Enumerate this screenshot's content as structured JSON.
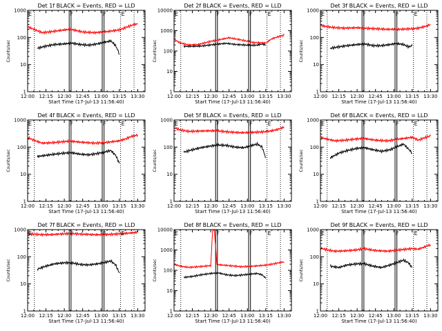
{
  "common": {
    "xlabel": "Start Time (17-Jul-13 11:56:40)",
    "ylabel": "Counts/sec",
    "x_ticks": [
      "12:00",
      "12:15",
      "12:30",
      "12:45",
      "13:00",
      "13:15",
      "13:30"
    ],
    "x_tick_minutes": [
      0,
      15,
      30,
      45,
      60,
      75,
      90
    ],
    "x_range_minutes": [
      0,
      96
    ],
    "y_scale": "log",
    "y_ticks": [
      1,
      10,
      100,
      1000
    ],
    "y_tick_labels": [
      "1",
      "10",
      "100",
      "1000"
    ],
    "colors": {
      "events": "#000000",
      "lld": "#ff0000"
    },
    "vlines": [
      {
        "minute": 5.5,
        "style": "dotted"
      },
      {
        "minute": 34,
        "style": "solid",
        "label": "F"
      },
      {
        "minute": 35.5,
        "style": "solid"
      },
      {
        "minute": 61,
        "style": "solid",
        "label": "F"
      },
      {
        "minute": 62.5,
        "style": "solid"
      },
      {
        "minute": 76,
        "style": "dotted",
        "label": "E"
      },
      {
        "minute": 87,
        "style": "dotted"
      }
    ],
    "left_marker_label": "E",
    "grid": false
  },
  "chart_data": [
    {
      "type": "line",
      "title": "Det 1f BLACK = Events, RED = LLD",
      "y_tick_labels": [
        "1",
        "10",
        "100",
        "1000"
      ],
      "ylim": [
        1,
        1000
      ],
      "series": [
        {
          "name": "Events",
          "color": "#000000",
          "x": [
            8,
            15,
            22,
            30,
            36,
            43,
            50,
            57,
            62,
            68,
            72,
            75
          ],
          "y": [
            40,
            48,
            55,
            58,
            62,
            55,
            52,
            58,
            65,
            75,
            50,
            25
          ]
        },
        {
          "name": "LLD",
          "color": "#ff0000",
          "x": [
            0,
            5,
            12,
            20,
            30,
            35,
            45,
            55,
            65,
            75,
            80,
            85,
            90
          ],
          "y": [
            250,
            200,
            150,
            165,
            190,
            200,
            160,
            150,
            165,
            190,
            230,
            280,
            320
          ]
        }
      ]
    },
    {
      "type": "line",
      "title": "Det 2f BLACK = Events, RED = LLD",
      "y_tick_labels": [
        "1",
        "10",
        "100",
        "1000",
        "10000"
      ],
      "ylim": [
        1,
        10000
      ],
      "series": [
        {
          "name": "Events",
          "color": "#000000",
          "x": [
            8,
            15,
            22,
            30,
            36,
            43,
            50,
            57,
            62,
            68,
            72,
            75
          ],
          "y": [
            170,
            170,
            175,
            200,
            220,
            240,
            210,
            200,
            190,
            195,
            220,
            200
          ]
        },
        {
          "name": "LLD",
          "color": "#ff0000",
          "x": [
            0,
            5,
            12,
            20,
            30,
            35,
            45,
            55,
            65,
            75,
            80,
            85,
            90
          ],
          "y": [
            380,
            250,
            200,
            210,
            300,
            340,
            450,
            350,
            260,
            250,
            400,
            500,
            600
          ]
        }
      ]
    },
    {
      "type": "line",
      "title": "Det 3f BLACK = Events, RED = LLD",
      "y_tick_labels": [
        "1",
        "10",
        "100",
        "1000"
      ],
      "ylim": [
        1,
        1000
      ],
      "series": [
        {
          "name": "Events",
          "color": "#000000",
          "x": [
            8,
            15,
            22,
            30,
            36,
            43,
            50,
            57,
            62,
            68,
            72,
            75
          ],
          "y": [
            40,
            45,
            50,
            55,
            58,
            50,
            50,
            55,
            60,
            55,
            45,
            50
          ]
        },
        {
          "name": "LLD",
          "color": "#ff0000",
          "x": [
            0,
            5,
            12,
            20,
            30,
            35,
            45,
            55,
            65,
            75,
            80,
            85,
            90
          ],
          "y": [
            280,
            250,
            230,
            220,
            230,
            220,
            210,
            200,
            200,
            210,
            220,
            250,
            300
          ]
        }
      ]
    },
    {
      "type": "line",
      "title": "Det 4f BLACK = Events, RED = LLD",
      "y_tick_labels": [
        "1",
        "10",
        "100",
        "1000"
      ],
      "ylim": [
        1,
        1000
      ],
      "series": [
        {
          "name": "Events",
          "color": "#000000",
          "x": [
            8,
            15,
            22,
            30,
            36,
            43,
            50,
            57,
            62,
            68,
            72,
            75
          ],
          "y": [
            45,
            50,
            55,
            60,
            62,
            55,
            52,
            58,
            65,
            75,
            50,
            25
          ]
        },
        {
          "name": "LLD",
          "color": "#ff0000",
          "x": [
            0,
            5,
            12,
            20,
            30,
            35,
            45,
            55,
            65,
            75,
            80,
            85,
            90
          ],
          "y": [
            230,
            180,
            140,
            145,
            160,
            165,
            150,
            140,
            150,
            170,
            200,
            250,
            280
          ]
        }
      ]
    },
    {
      "type": "line",
      "title": "Det 5f BLACK = Events, RED = LLD",
      "y_tick_labels": [
        "1",
        "10",
        "100",
        "1000"
      ],
      "ylim": [
        1,
        1000
      ],
      "series": [
        {
          "name": "Events",
          "color": "#000000",
          "x": [
            8,
            15,
            22,
            30,
            36,
            43,
            50,
            57,
            62,
            68,
            72,
            75
          ],
          "y": [
            65,
            80,
            95,
            110,
            120,
            115,
            100,
            95,
            110,
            130,
            100,
            40
          ]
        },
        {
          "name": "LLD",
          "color": "#ff0000",
          "x": [
            0,
            5,
            12,
            20,
            30,
            35,
            45,
            55,
            65,
            75,
            80,
            85,
            90
          ],
          "y": [
            520,
            430,
            380,
            390,
            400,
            400,
            360,
            340,
            350,
            370,
            400,
            450,
            550
          ]
        }
      ]
    },
    {
      "type": "line",
      "title": "Det 6f BLACK = Events, RED = LLD",
      "y_tick_labels": [
        "1",
        "10",
        "100",
        "1000"
      ],
      "ylim": [
        1,
        1000
      ],
      "series": [
        {
          "name": "Events",
          "color": "#000000",
          "x": [
            8,
            15,
            22,
            30,
            36,
            43,
            50,
            57,
            62,
            68,
            72,
            75
          ],
          "y": [
            40,
            60,
            75,
            90,
            95,
            80,
            70,
            80,
            100,
            130,
            85,
            60
          ]
        },
        {
          "name": "LLD",
          "color": "#ff0000",
          "x": [
            0,
            5,
            12,
            20,
            30,
            35,
            45,
            55,
            65,
            75,
            80,
            85,
            90
          ],
          "y": [
            230,
            200,
            170,
            180,
            200,
            210,
            180,
            170,
            200,
            230,
            180,
            220,
            260
          ]
        }
      ]
    },
    {
      "type": "line",
      "title": "Det 7f BLACK = Events, RED = LLD",
      "y_tick_labels": [
        "1",
        "10",
        "100",
        "1000"
      ],
      "ylim": [
        1,
        1000
      ],
      "series": [
        {
          "name": "Events",
          "color": "#000000",
          "x": [
            8,
            15,
            22,
            30,
            36,
            43,
            50,
            57,
            62,
            68,
            72,
            75
          ],
          "y": [
            35,
            45,
            55,
            60,
            60,
            52,
            50,
            55,
            60,
            70,
            50,
            25
          ]
        },
        {
          "name": "LLD",
          "color": "#ff0000",
          "x": [
            0,
            5,
            12,
            20,
            30,
            35,
            45,
            55,
            65,
            75,
            80,
            85,
            90
          ],
          "y": [
            700,
            680,
            650,
            660,
            700,
            720,
            680,
            650,
            660,
            700,
            730,
            760,
            800
          ]
        }
      ]
    },
    {
      "type": "line",
      "title": "Det 8f BLACK = Events, RED = LLD",
      "y_tick_labels": [
        "1",
        "10",
        "100",
        "1000",
        "10000"
      ],
      "ylim": [
        1,
        10000
      ],
      "series": [
        {
          "name": "Events",
          "color": "#000000",
          "x": [
            8,
            15,
            22,
            30,
            36,
            43,
            50,
            57,
            62,
            68,
            72,
            75
          ],
          "y": [
            45,
            50,
            60,
            70,
            75,
            60,
            55,
            60,
            65,
            70,
            60,
            40
          ]
        },
        {
          "name": "LLD",
          "color": "#ff0000",
          "x": [
            0,
            5,
            12,
            20,
            30,
            31.5,
            32,
            33,
            35,
            36,
            45,
            55,
            65,
            75,
            80,
            85,
            90
          ],
          "y": [
            200,
            160,
            140,
            150,
            170,
            9000,
            9500,
            9000,
            220,
            190,
            170,
            150,
            160,
            180,
            200,
            230,
            260
          ]
        }
      ]
    },
    {
      "type": "line",
      "title": "Det 9f BLACK = Events, RED = LLD",
      "y_tick_labels": [
        "1",
        "10",
        "100",
        "1000"
      ],
      "ylim": [
        1,
        1000
      ],
      "series": [
        {
          "name": "Events",
          "color": "#000000",
          "x": [
            8,
            15,
            22,
            30,
            36,
            43,
            50,
            57,
            62,
            68,
            72,
            75
          ],
          "y": [
            45,
            40,
            50,
            55,
            55,
            45,
            40,
            50,
            60,
            75,
            60,
            40
          ]
        },
        {
          "name": "LLD",
          "color": "#ff0000",
          "x": [
            0,
            5,
            12,
            20,
            30,
            35,
            45,
            55,
            65,
            75,
            80,
            85,
            90
          ],
          "y": [
            210,
            180,
            160,
            165,
            180,
            200,
            170,
            160,
            180,
            200,
            190,
            230,
            280
          ]
        }
      ]
    }
  ]
}
